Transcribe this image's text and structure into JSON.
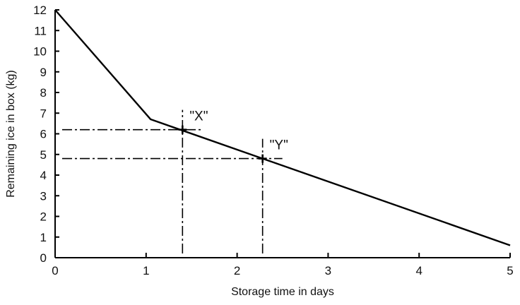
{
  "chart_data": {
    "type": "line",
    "xlabel": "Storage time in days",
    "ylabel": "Remaining ice in box (kg)",
    "xlim": [
      0,
      5
    ],
    "ylim": [
      0,
      12
    ],
    "x_ticks": [
      "0",
      "1",
      "2",
      "3",
      "4",
      "5"
    ],
    "y_ticks": [
      "0",
      "1",
      "2",
      "3",
      "4",
      "5",
      "6",
      "7",
      "8",
      "9",
      "10",
      "11",
      "12"
    ],
    "grid": false,
    "series": [
      {
        "points": [
          {
            "x": 0,
            "y": 12
          },
          {
            "x": 1.05,
            "y": 6.7
          },
          {
            "x": 5,
            "y": 0.6
          }
        ]
      }
    ],
    "annotations": [
      {
        "label": "\"X\"",
        "x": 1.4,
        "y": 6.2
      },
      {
        "label": "\"Y\"",
        "x": 2.28,
        "y": 4.8
      }
    ]
  }
}
